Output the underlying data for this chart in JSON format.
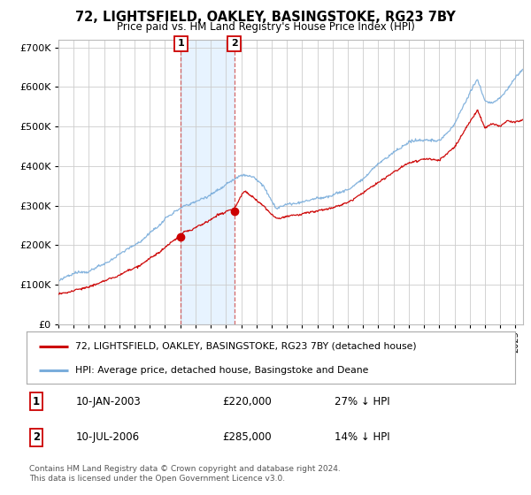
{
  "title": "72, LIGHTSFIELD, OAKLEY, BASINGSTOKE, RG23 7BY",
  "subtitle": "Price paid vs. HM Land Registry's House Price Index (HPI)",
  "ylim": [
    0,
    720000
  ],
  "xlim_start": 1995.0,
  "xlim_end": 2025.5,
  "sale1_date": 2003.04,
  "sale1_price": 220000,
  "sale2_date": 2006.54,
  "sale2_price": 285000,
  "line_property_color": "#cc0000",
  "line_hpi_color": "#7aaddb",
  "shade_color": "#ddeeff",
  "legend_property": "72, LIGHTSFIELD, OAKLEY, BASINGSTOKE, RG23 7BY (detached house)",
  "legend_hpi": "HPI: Average price, detached house, Basingstoke and Deane",
  "table_row1": [
    "1",
    "10-JAN-2003",
    "£220,000",
    "27% ↓ HPI"
  ],
  "table_row2": [
    "2",
    "10-JUL-2006",
    "£285,000",
    "14% ↓ HPI"
  ],
  "footer": "Contains HM Land Registry data © Crown copyright and database right 2024.\nThis data is licensed under the Open Government Licence v3.0.",
  "background_color": "#ffffff",
  "grid_color": "#cccccc"
}
